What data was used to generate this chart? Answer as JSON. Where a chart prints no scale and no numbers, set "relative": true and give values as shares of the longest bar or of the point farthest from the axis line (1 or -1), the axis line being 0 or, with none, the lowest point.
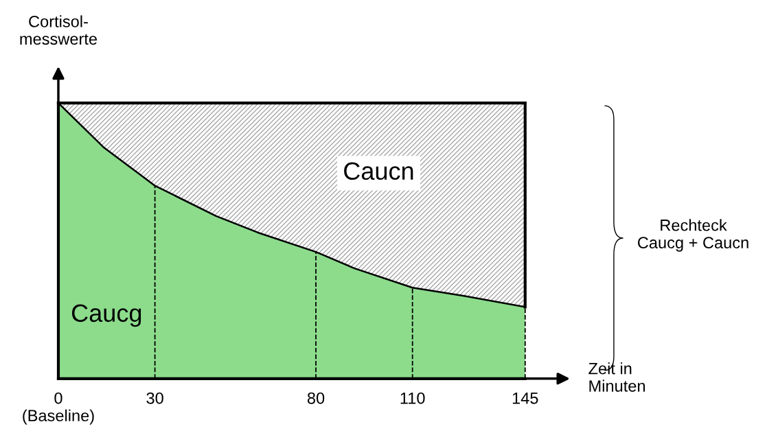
{
  "chart_data": {
    "type": "area",
    "relative": true,
    "stacked": true,
    "x": [
      0,
      14,
      30,
      49,
      62,
      80,
      92,
      110,
      126,
      145
    ],
    "xlim": [
      0,
      145
    ],
    "xticks": [
      {
        "value": 0,
        "label": "0\n(Baseline)"
      },
      30,
      80,
      110,
      145
    ],
    "xlabel": "Zeit in\nMinuten",
    "ylabel": "Cortisol-\nmesswerte",
    "series": [
      {
        "name": "Caucg",
        "color": "#8cdc8c",
        "values": [
          1,
          0.84,
          0.7,
          0.59,
          0.53,
          0.46,
          0.4,
          0.33,
          0.3,
          0.26
        ]
      },
      {
        "name": "Caucn",
        "color": "#a8a8a8",
        "values": [
          0,
          0.16,
          0.3,
          0.41,
          0.47,
          0.54,
          0.6,
          0.67,
          0.7,
          0.74
        ]
      }
    ],
    "ref_lines": [
      {
        "axis": "x",
        "value": 30,
        "line_style": "dashed"
      },
      {
        "axis": "x",
        "value": 80,
        "line_style": "dashed"
      },
      {
        "axis": "x",
        "value": 110,
        "line_style": "dashed"
      },
      {
        "axis": "x",
        "value": 145,
        "line_style": "dashed"
      }
    ],
    "annotations": [
      "Rechteck\nCaucg + Caucn"
    ],
    "grid": false
  }
}
